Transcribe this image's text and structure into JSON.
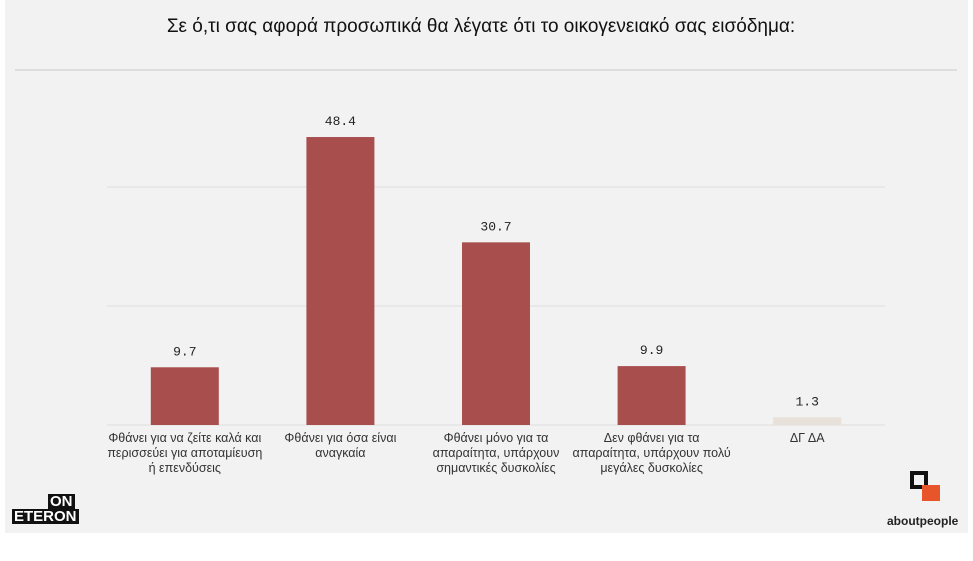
{
  "chart_data": {
    "type": "bar",
    "title": "Σε ό,τι σας αφορά προσωπικά θα λέγατε ότι το οικογενειακό σας εισόδημα:",
    "categories": [
      "Φθάνει για να ζείτε καλά και περισσεύει για αποταμίευση ή επενδύσεις",
      "Φθάνει για όσα είναι αναγκαία",
      "Φθάνει μόνο για τα απαραίτητα, υπάρχουν σημαντικές δυσκολίες",
      "Δεν φθάνει για τα απαραίτητα, υπάρχουν πολύ μεγάλες δυσκολίες",
      "ΔΓ ΔΑ"
    ],
    "values": [
      9.7,
      48.4,
      30.7,
      9.9,
      1.3
    ],
    "colors": [
      "#a84f4e",
      "#a84f4e",
      "#a84f4e",
      "#a84f4e",
      "#e8e1d9"
    ],
    "ylim": [
      0,
      60
    ],
    "yticks": [
      0,
      20,
      40
    ],
    "grid": true
  },
  "logos": {
    "left_top": "ON",
    "left_bottom": "ETERON",
    "right": "aboutpeople"
  }
}
